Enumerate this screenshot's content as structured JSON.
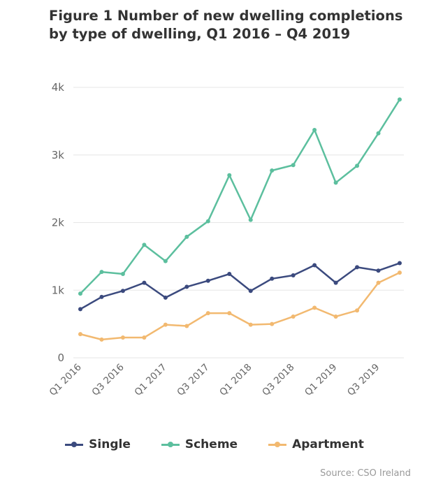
{
  "chart_data": {
    "type": "line",
    "title": "Figure 1 Number of new dwelling completions by type of dwelling, Q1 2016 – Q4 2019",
    "categories": [
      "Q1 2016",
      "Q2 2016",
      "Q3 2016",
      "Q4 2016",
      "Q1 2017",
      "Q2 2017",
      "Q3 2017",
      "Q4 2017",
      "Q1 2018",
      "Q2 2018",
      "Q3 2018",
      "Q4 2018",
      "Q1 2019",
      "Q2 2019",
      "Q3 2019",
      "Q4 2019"
    ],
    "x_tick_labels": [
      "Q1 2016",
      "Q3 2016",
      "Q1 2017",
      "Q3 2017",
      "Q1 2018",
      "Q3 2018",
      "Q1 2019",
      "Q3 2019"
    ],
    "y_ticks": [
      0,
      1000,
      2000,
      3000,
      4000
    ],
    "y_tick_labels": [
      "0",
      "1k",
      "2k",
      "3k",
      "4k"
    ],
    "ylim": [
      0,
      4000
    ],
    "xlabel": "",
    "ylabel": "",
    "grid": true,
    "legend_position": "bottom",
    "series": [
      {
        "name": "Single",
        "color": "#3b4a7e",
        "values": [
          720,
          900,
          990,
          1110,
          890,
          1050,
          1140,
          1240,
          990,
          1170,
          1220,
          1370,
          1110,
          1340,
          1290,
          1400
        ]
      },
      {
        "name": "Scheme",
        "color": "#5cbf9e",
        "values": [
          950,
          1270,
          1240,
          1670,
          1430,
          1790,
          2020,
          2700,
          2040,
          2770,
          2850,
          3370,
          2590,
          2840,
          3320,
          3820
        ]
      },
      {
        "name": "Apartment",
        "color": "#f2b970",
        "values": [
          350,
          270,
          300,
          300,
          490,
          470,
          660,
          660,
          490,
          500,
          610,
          740,
          610,
          700,
          1110,
          1260
        ]
      }
    ],
    "source": "Source: CSO Ireland"
  }
}
